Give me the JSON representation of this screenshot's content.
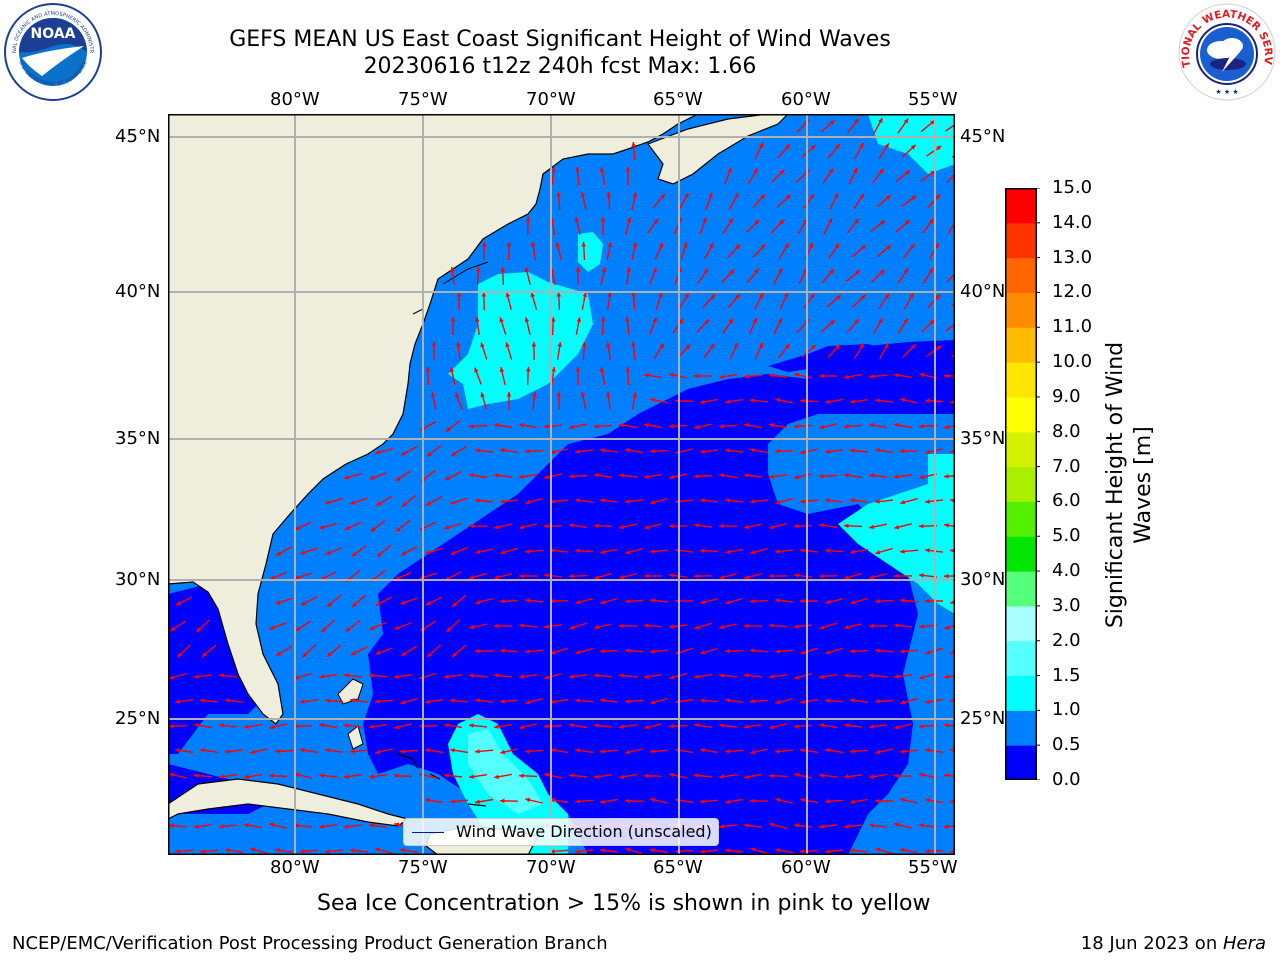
{
  "title_line1": "GEFS MEAN US East Coast Significant Height of Wind Waves",
  "title_line2": "20230616 t12z 240h fcst   Max: 1.66",
  "map": {
    "lon_ticks_top": [
      "80°W",
      "75°W",
      "70°W",
      "65°W",
      "60°W",
      "55°W"
    ],
    "lon_ticks_bottom": [
      "80°W",
      "75°W",
      "70°W",
      "65°W",
      "60°W",
      "55°W"
    ],
    "lat_ticks_left": [
      "45°N",
      "40°N",
      "35°N",
      "30°N",
      "25°N"
    ],
    "lat_ticks_right": [
      "45°N",
      "40°N",
      "35°N",
      "30°N",
      "25°N"
    ],
    "lon_range": [
      -85,
      -54.3
    ],
    "lat_range": [
      20.5,
      46.5
    ],
    "colors": {
      "land": "#efeedc",
      "ocean_0_0.5": "#0000ff",
      "ocean_0.5_1.0": "#0080ff",
      "ocean_1.0_1.5": "#00ffff",
      "ocean_1.5_2.0": "#55ffff",
      "arrows": "#ff0000",
      "grid": "#b0b0b0"
    },
    "legend_text": "Wind Wave Direction (unscaled)"
  },
  "colorbar": {
    "label": "Significant Height of Wind Waves [m]",
    "label_line1": "Significant Height of Wind",
    "label_line2": "Waves [m]",
    "ticks": [
      "0.0",
      "0.5",
      "1.0",
      "1.5",
      "2.0",
      "3.0",
      "4.0",
      "5.0",
      "6.0",
      "7.0",
      "8.0",
      "9.0",
      "10.0",
      "11.0",
      "12.0",
      "13.0",
      "14.0",
      "15.0"
    ],
    "colors": [
      "#0000ff",
      "#0080ff",
      "#00ffff",
      "#55ffff",
      "#a8ffff",
      "#55ff7a",
      "#00e600",
      "#55f000",
      "#aaee00",
      "#d4f200",
      "#ffff00",
      "#ffe600",
      "#ffbb00",
      "#ff8c00",
      "#ff6600",
      "#ff3300",
      "#ff0000"
    ]
  },
  "ice_note": "Sea Ice Concentration > 15% is shown in pink to yellow",
  "footer_left": "NCEP/EMC/Verification Post Processing Product Generation Branch",
  "footer_right_date": "18 Jun 2023 on ",
  "footer_right_host": "Hera",
  "logos": {
    "noaa_text": "NOAA",
    "noaa_ring": "NATIONAL OCEANIC AND ATMOSPHERIC ADMINISTRATION",
    "noaa_ring_bottom": "U.S. DEPARTMENT OF COMMERCE",
    "nws_ring": "NATIONAL WEATHER SERVICE"
  }
}
